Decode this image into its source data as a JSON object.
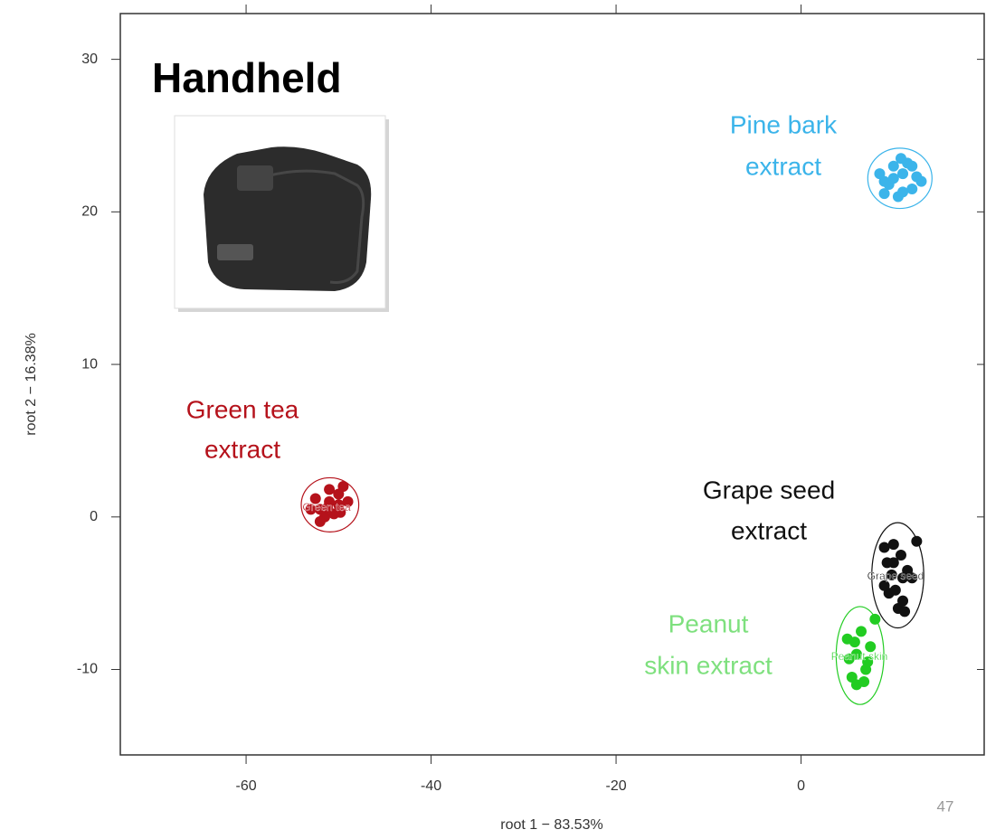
{
  "chart_data": {
    "type": "scatter",
    "title": "Handheld",
    "x_label": "root 1 − 83.53%",
    "y_label": "root 2 − 16.38%",
    "page_number": "47",
    "xlim": [
      -73.6,
      19.8
    ],
    "ylim": [
      -15.6,
      33
    ],
    "xticks": [
      -60,
      -40,
      -20,
      0
    ],
    "yticks": [
      -10,
      0,
      10,
      20,
      30
    ],
    "series": [
      {
        "label_lines": [
          "Pine bark",
          "extract"
        ],
        "color": "#3bb4ea",
        "x": [
          9,
          10,
          11,
          12,
          10.5,
          9.5,
          11.5,
          12.5,
          8.5,
          10,
          11,
          13,
          9,
          12,
          10.8
        ],
        "y": [
          22,
          23,
          22.5,
          21.5,
          21,
          21.8,
          23.2,
          22.3,
          22.5,
          22.2,
          21.3,
          22,
          21.2,
          23,
          23.5
        ]
      },
      {
        "label_lines": [
          "Green tea",
          "extract"
        ],
        "cluster_label": "Green tea",
        "color": "#b5121b",
        "x": [
          -52,
          -51,
          -50,
          -49.5,
          -52.5,
          -51.5,
          -50.5,
          -49,
          -53,
          -51,
          -50,
          -52,
          -51.2,
          -49.8
        ],
        "y": [
          0.5,
          1,
          1.5,
          2,
          1.2,
          0,
          0.2,
          1,
          0.5,
          1.8,
          0.8,
          -0.3,
          0.6,
          0.3
        ]
      },
      {
        "label_lines": [
          "Grape seed",
          "extract"
        ],
        "cluster_label": "Grape seed",
        "color": "#111111",
        "x": [
          9,
          10,
          11,
          9.5,
          10.5,
          11.5,
          9,
          10,
          11,
          12,
          9.8,
          10.8,
          11.2,
          9.3,
          10.2,
          12.5
        ],
        "y": [
          -2,
          -3,
          -4,
          -5,
          -6,
          -3.5,
          -4.5,
          -1.8,
          -5.5,
          -4,
          -3.8,
          -2.5,
          -6.2,
          -3,
          -4.8,
          -1.6
        ]
      },
      {
        "label_lines": [
          "Peanut",
          "skin extract"
        ],
        "cluster_label": "Peanut skin",
        "color": "#22cc22",
        "x": [
          5,
          6,
          7,
          5.5,
          6.5,
          7.2,
          5.2,
          6,
          7.5,
          5.8,
          6.8,
          8
        ],
        "y": [
          -8,
          -9,
          -10,
          -10.5,
          -7.5,
          -9.5,
          -9.3,
          -11,
          -8.5,
          -8.2,
          -10.8,
          -6.7
        ]
      }
    ]
  }
}
